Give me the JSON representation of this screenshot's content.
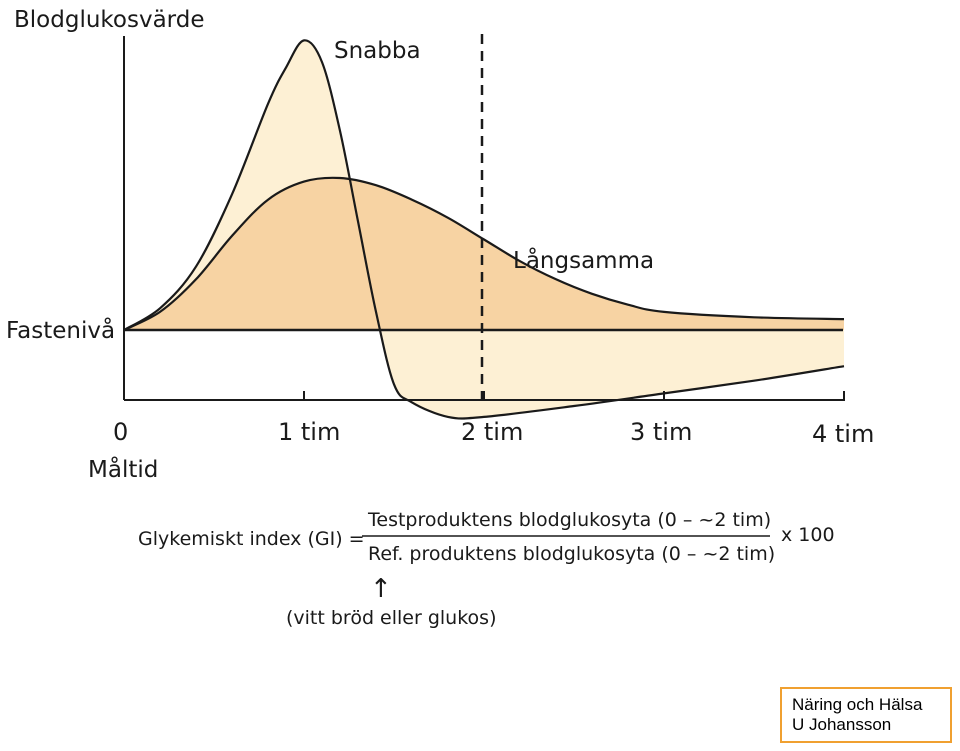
{
  "chart_data": {
    "type": "area",
    "title": "",
    "ylabel": "Blodglukosvärde",
    "baseline_label": "Fastenivå",
    "xlabel": "Måltid",
    "x_ticks": [
      "0",
      "1 tim",
      "2 tim",
      "3 tim",
      "4 tim"
    ],
    "x_range_hours": [
      0,
      4
    ],
    "y_relative_to_fasting": [
      -0.3,
      1.8
    ],
    "reference_line_x": 2,
    "series": [
      {
        "name": "Snabba",
        "fill": "#fdf0d4",
        "x": [
          0,
          0.2,
          0.4,
          0.6,
          0.8,
          0.9,
          1.0,
          1.1,
          1.2,
          1.3,
          1.4,
          1.5,
          1.6,
          1.8,
          2.0,
          2.5,
          3.0,
          3.5,
          4.0
        ],
        "y": [
          0,
          0.12,
          0.35,
          0.75,
          1.25,
          1.45,
          1.6,
          1.48,
          1.1,
          0.6,
          0.1,
          -0.3,
          -0.4,
          -0.48,
          -0.48,
          -0.42,
          -0.35,
          -0.28,
          -0.2
        ]
      },
      {
        "name": "Långsamma",
        "fill": "#f7d3a3",
        "x": [
          0,
          0.2,
          0.4,
          0.6,
          0.8,
          1.0,
          1.2,
          1.4,
          1.6,
          1.8,
          2.0,
          2.2,
          2.4,
          2.6,
          2.8,
          3.0,
          3.5,
          4.0
        ],
        "y": [
          0,
          0.1,
          0.28,
          0.52,
          0.72,
          0.82,
          0.84,
          0.8,
          0.72,
          0.62,
          0.5,
          0.38,
          0.28,
          0.2,
          0.14,
          0.1,
          0.07,
          0.06
        ]
      }
    ]
  },
  "formula": {
    "lhs": "Glykemiskt index (GI) =",
    "numerator": "Testproduktens blodglukosyta (0 – ~2 tim)",
    "denominator": "Ref. produktens blodglukosyta (0 – ~2 tim)",
    "multiplier": "x 100",
    "arrow": "↑",
    "note": "(vitt bröd eller glukos)"
  },
  "credit": {
    "line1": "Näring och Hälsa",
    "line2": "U Johansson"
  },
  "colors": {
    "border": "#f0a030",
    "ink": "#1a1a1a"
  }
}
